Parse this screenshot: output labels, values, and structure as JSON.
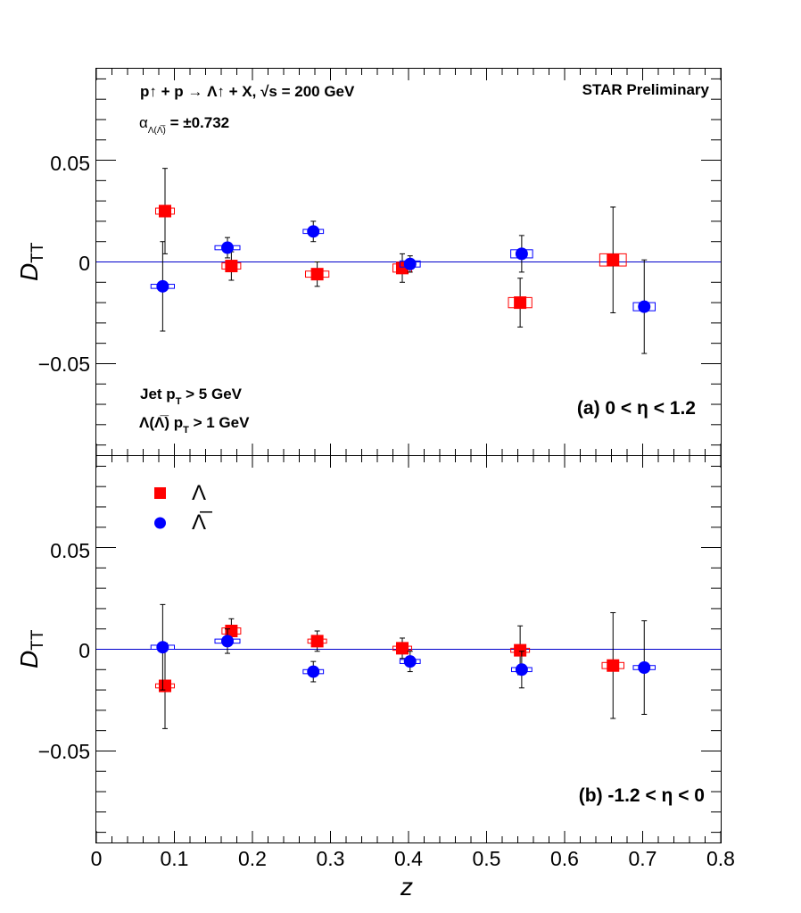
{
  "chart_data": [
    {
      "type": "scatter",
      "panel": "a",
      "ylabel": "D",
      "ylabel_sub": "TT",
      "xlim": [
        0,
        0.8
      ],
      "ylim": [
        -0.095,
        0.095
      ],
      "y_ticks": [
        0.05,
        0,
        -0.05
      ],
      "y_tick_labels": [
        "0.05",
        "0",
        "−0.05"
      ],
      "reference_line_y": 0,
      "annotations": {
        "process": "p↑ + p → Λ↑ + X,  √s = 200 GeV",
        "alpha": "α",
        "alpha_sub": "Λ(Λ̅)",
        "alpha_value": " = ±0.732",
        "experiment": "STAR Preliminary",
        "jet_cut_a": "Jet   p",
        "jet_cut_sub": "T",
        "jet_cut_b": " > 5 GeV",
        "lambda_cut_a": "Λ(Λ̅) p",
        "lambda_cut_sub": "T",
        "lambda_cut_b": " > 1 GeV",
        "region": "(a)   0 < η < 1.2"
      },
      "series": [
        {
          "name": "Λ",
          "marker": "square",
          "color": "#ff0000",
          "points": [
            {
              "x": 0.088,
              "y": 0.025,
              "stat": 0.021,
              "sys_x": 0.012,
              "sys_y": 0.0015
            },
            {
              "x": 0.173,
              "y": -0.002,
              "stat": 0.007,
              "sys_x": 0.012,
              "sys_y": 0.0015
            },
            {
              "x": 0.283,
              "y": -0.006,
              "stat": 0.006,
              "sys_x": 0.015,
              "sys_y": 0.0015
            },
            {
              "x": 0.392,
              "y": -0.003,
              "stat": 0.007,
              "sys_x": 0.012,
              "sys_y": 0.002
            },
            {
              "x": 0.543,
              "y": -0.02,
              "stat": 0.012,
              "sys_x": 0.015,
              "sys_y": 0.0025
            },
            {
              "x": 0.662,
              "y": 0.001,
              "stat": 0.026,
              "sys_x": 0.017,
              "sys_y": 0.003
            }
          ]
        },
        {
          "name": "Λ̅",
          "marker": "circle",
          "color": "#0000ff",
          "points": [
            {
              "x": 0.085,
              "y": -0.012,
              "stat": 0.022,
              "sys_x": 0.015,
              "sys_y": 0.001
            },
            {
              "x": 0.168,
              "y": 0.007,
              "stat": 0.005,
              "sys_x": 0.016,
              "sys_y": 0.001
            },
            {
              "x": 0.278,
              "y": 0.015,
              "stat": 0.005,
              "sys_x": 0.013,
              "sys_y": 0.001
            },
            {
              "x": 0.402,
              "y": -0.001,
              "stat": 0.004,
              "sys_x": 0.013,
              "sys_y": 0.0015
            },
            {
              "x": 0.545,
              "y": 0.004,
              "stat": 0.009,
              "sys_x": 0.014,
              "sys_y": 0.002
            },
            {
              "x": 0.702,
              "y": -0.022,
              "stat": 0.023,
              "sys_x": 0.014,
              "sys_y": 0.002
            }
          ]
        }
      ]
    },
    {
      "type": "scatter",
      "panel": "b",
      "ylabel": "D",
      "ylabel_sub": "TT",
      "xlabel": "z",
      "xlim": [
        0,
        0.8
      ],
      "ylim": [
        -0.095,
        0.095
      ],
      "x_ticks": [
        0,
        0.1,
        0.2,
        0.3,
        0.4,
        0.5,
        0.6,
        0.7,
        0.8
      ],
      "x_tick_labels": [
        "0",
        "0.1",
        "0.2",
        "0.3",
        "0.4",
        "0.5",
        "0.6",
        "0.7",
        "0.8"
      ],
      "y_ticks": [
        0.05,
        0,
        -0.05
      ],
      "y_tick_labels": [
        "0.05",
        "0",
        "−0.05"
      ],
      "reference_line_y": 0,
      "legend": [
        "Λ",
        "Λ̅"
      ],
      "annotations": {
        "region": "(b)   -1.2 < η < 0"
      },
      "series": [
        {
          "name": "Λ",
          "marker": "square",
          "color": "#ff0000",
          "points": [
            {
              "x": 0.088,
              "y": -0.018,
              "stat": 0.021,
              "sys_x": 0.012,
              "sys_y": 0.001
            },
            {
              "x": 0.173,
              "y": 0.009,
              "stat": 0.006,
              "sys_x": 0.012,
              "sys_y": 0.0015
            },
            {
              "x": 0.283,
              "y": 0.004,
              "stat": 0.005,
              "sys_x": 0.012,
              "sys_y": 0.001
            },
            {
              "x": 0.392,
              "y": 0.0005,
              "stat": 0.005,
              "sys_x": 0.012,
              "sys_y": 0.001
            },
            {
              "x": 0.543,
              "y": -0.0005,
              "stat": 0.012,
              "sys_x": 0.012,
              "sys_y": 0.001
            },
            {
              "x": 0.662,
              "y": -0.008,
              "stat": 0.026,
              "sys_x": 0.014,
              "sys_y": 0.0015
            }
          ]
        },
        {
          "name": "Λ̅",
          "marker": "circle",
          "color": "#0000ff",
          "points": [
            {
              "x": 0.085,
              "y": 0.001,
              "stat": 0.021,
              "sys_x": 0.015,
              "sys_y": 0.001
            },
            {
              "x": 0.168,
              "y": 0.004,
              "stat": 0.006,
              "sys_x": 0.016,
              "sys_y": 0.001
            },
            {
              "x": 0.278,
              "y": -0.011,
              "stat": 0.005,
              "sys_x": 0.013,
              "sys_y": 0.001
            },
            {
              "x": 0.402,
              "y": -0.006,
              "stat": 0.005,
              "sys_x": 0.013,
              "sys_y": 0.001
            },
            {
              "x": 0.545,
              "y": -0.01,
              "stat": 0.009,
              "sys_x": 0.013,
              "sys_y": 0.001
            },
            {
              "x": 0.702,
              "y": -0.009,
              "stat": 0.023,
              "sys_x": 0.014,
              "sys_y": 0.001
            }
          ]
        }
      ]
    }
  ]
}
